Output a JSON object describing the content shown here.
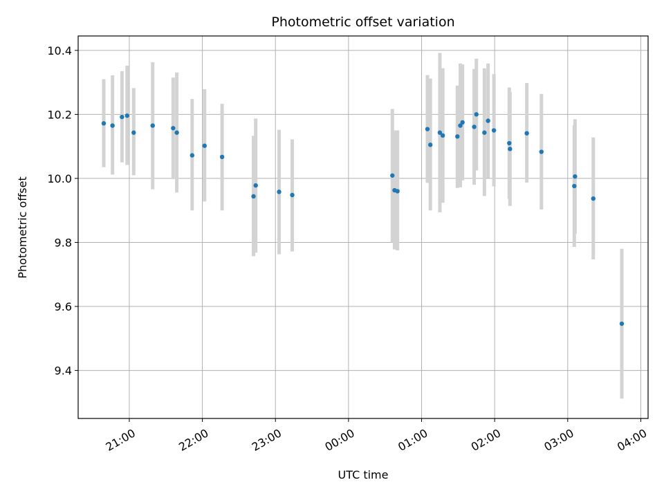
{
  "chart_data": {
    "type": "scatter",
    "title": "Photometric offset variation",
    "xlabel": "UTC time",
    "ylabel": "Photometric offset",
    "x_unit": "UTC hour (values after midnight continue past 24)",
    "xlim": [
      20.3,
      28.1
    ],
    "ylim": [
      9.25,
      10.445
    ],
    "grid": true,
    "colors": {
      "marker": "#1f77b4",
      "errorbar": "#d3d3d3"
    },
    "x_ticks": [
      {
        "value": 21,
        "label": "21:00"
      },
      {
        "value": 22,
        "label": "22:00"
      },
      {
        "value": 23,
        "label": "23:00"
      },
      {
        "value": 24,
        "label": "00:00"
      },
      {
        "value": 25,
        "label": "01:00"
      },
      {
        "value": 26,
        "label": "02:00"
      },
      {
        "value": 27,
        "label": "03:00"
      },
      {
        "value": 28,
        "label": "04:00"
      }
    ],
    "y_ticks": [
      {
        "value": 9.4,
        "label": "9.4"
      },
      {
        "value": 9.6,
        "label": "9.6"
      },
      {
        "value": 9.8,
        "label": "9.8"
      },
      {
        "value": 10.0,
        "label": "10.0"
      },
      {
        "value": 10.2,
        "label": "10.2"
      },
      {
        "value": 10.4,
        "label": "10.4"
      }
    ],
    "points": [
      {
        "x": 20.65,
        "y": 10.172,
        "lo": 10.035,
        "hi": 10.31
      },
      {
        "x": 20.77,
        "y": 10.165,
        "lo": 10.012,
        "hi": 10.322
      },
      {
        "x": 20.9,
        "y": 10.192,
        "lo": 10.05,
        "hi": 10.335
      },
      {
        "x": 20.97,
        "y": 10.196,
        "lo": 10.042,
        "hi": 10.352
      },
      {
        "x": 21.06,
        "y": 10.143,
        "lo": 10.01,
        "hi": 10.282
      },
      {
        "x": 21.32,
        "y": 10.165,
        "lo": 9.966,
        "hi": 10.363
      },
      {
        "x": 21.6,
        "y": 10.157,
        "lo": 9.998,
        "hi": 10.315
      },
      {
        "x": 21.65,
        "y": 10.143,
        "lo": 9.956,
        "hi": 10.331
      },
      {
        "x": 21.86,
        "y": 10.072,
        "lo": 9.9,
        "hi": 10.248
      },
      {
        "x": 22.03,
        "y": 10.102,
        "lo": 9.928,
        "hi": 10.279
      },
      {
        "x": 22.27,
        "y": 10.067,
        "lo": 9.9,
        "hi": 10.233
      },
      {
        "x": 22.7,
        "y": 9.944,
        "lo": 9.757,
        "hi": 10.133
      },
      {
        "x": 22.73,
        "y": 9.978,
        "lo": 9.768,
        "hi": 10.187
      },
      {
        "x": 23.05,
        "y": 9.958,
        "lo": 9.763,
        "hi": 10.152
      },
      {
        "x": 23.23,
        "y": 9.948,
        "lo": 9.772,
        "hi": 10.122
      },
      {
        "x": 24.6,
        "y": 10.009,
        "lo": 9.8,
        "hi": 10.217
      },
      {
        "x": 24.63,
        "y": 9.963,
        "lo": 9.778,
        "hi": 10.15
      },
      {
        "x": 24.67,
        "y": 9.96,
        "lo": 9.775,
        "hi": 10.15
      },
      {
        "x": 25.08,
        "y": 10.154,
        "lo": 9.986,
        "hi": 10.323
      },
      {
        "x": 25.12,
        "y": 10.105,
        "lo": 9.9,
        "hi": 10.312
      },
      {
        "x": 25.25,
        "y": 10.143,
        "lo": 9.894,
        "hi": 10.392
      },
      {
        "x": 25.29,
        "y": 10.134,
        "lo": 9.924,
        "hi": 10.344
      },
      {
        "x": 25.49,
        "y": 10.131,
        "lo": 9.97,
        "hi": 10.29
      },
      {
        "x": 25.53,
        "y": 10.165,
        "lo": 9.972,
        "hi": 10.359
      },
      {
        "x": 25.56,
        "y": 10.175,
        "lo": 9.994,
        "hi": 10.356
      },
      {
        "x": 25.72,
        "y": 10.161,
        "lo": 9.98,
        "hi": 10.342
      },
      {
        "x": 25.75,
        "y": 10.2,
        "lo": 10.025,
        "hi": 10.374
      },
      {
        "x": 25.86,
        "y": 10.143,
        "lo": 9.945,
        "hi": 10.344
      },
      {
        "x": 25.91,
        "y": 10.18,
        "lo": 10.001,
        "hi": 10.359
      },
      {
        "x": 25.99,
        "y": 10.15,
        "lo": 9.975,
        "hi": 10.326
      },
      {
        "x": 26.2,
        "y": 10.11,
        "lo": 9.936,
        "hi": 10.284
      },
      {
        "x": 26.21,
        "y": 10.092,
        "lo": 9.914,
        "hi": 10.27
      },
      {
        "x": 26.44,
        "y": 10.141,
        "lo": 9.987,
        "hi": 10.298
      },
      {
        "x": 26.64,
        "y": 10.083,
        "lo": 9.903,
        "hi": 10.264
      },
      {
        "x": 27.09,
        "y": 9.976,
        "lo": 9.786,
        "hi": 10.166
      },
      {
        "x": 27.1,
        "y": 10.006,
        "lo": 9.827,
        "hi": 10.185
      },
      {
        "x": 27.35,
        "y": 9.937,
        "lo": 9.747,
        "hi": 10.128
      },
      {
        "x": 27.74,
        "y": 9.546,
        "lo": 9.312,
        "hi": 9.78
      }
    ]
  }
}
